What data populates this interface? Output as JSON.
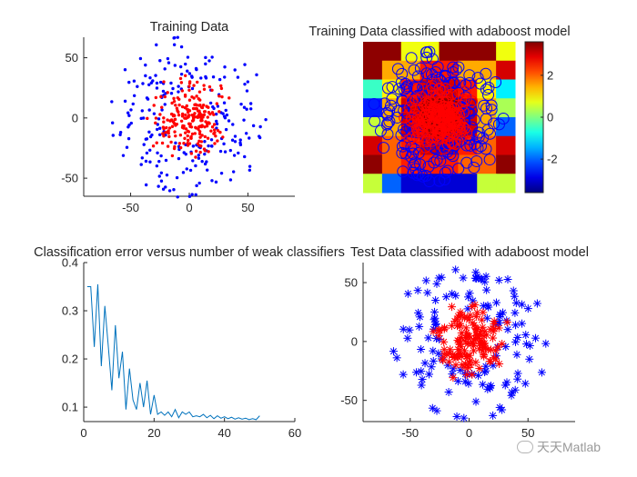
{
  "chart_data": [
    {
      "type": "scatter",
      "title": "Training Data",
      "xlim": [
        -90,
        90
      ],
      "ylim": [
        -65,
        67
      ],
      "xticks": [
        -50,
        0,
        50
      ],
      "yticks": [
        -50,
        0,
        50
      ],
      "series": [
        {
          "color": "#0000ff",
          "marker": ".",
          "generator": "ring",
          "count": 220,
          "r_min": 22,
          "r_max": 68,
          "seed": 11
        },
        {
          "color": "#ff0000",
          "marker": ".",
          "generator": "disk",
          "count": 220,
          "r_max": 40,
          "seed": 29
        }
      ]
    },
    {
      "type": "heatmap",
      "title": "Training Data classified with adaboost model",
      "colormap": "jet",
      "colorbar": {
        "ticks": [
          2,
          0,
          -2
        ],
        "labels": [
          "2",
          "0",
          "-2"
        ],
        "range": [
          -3.6,
          3.6
        ]
      },
      "grid_values": [
        [
          3.5,
          3.5,
          0.8,
          0.8,
          3.5,
          3.5,
          3.5,
          0.8
        ],
        [
          3.5,
          1.5,
          1.5,
          2.5,
          2.5,
          1.5,
          1.5,
          3.0
        ],
        [
          -0.5,
          1.0,
          2.5,
          3.0,
          3.0,
          2.5,
          1.0,
          -1.0
        ],
        [
          -2.5,
          1.5,
          3.0,
          3.5,
          3.5,
          3.0,
          1.5,
          0.3
        ],
        [
          0.5,
          1.5,
          3.0,
          3.5,
          3.5,
          3.0,
          1.5,
          -2.0
        ],
        [
          3.0,
          2.0,
          2.5,
          3.0,
          3.0,
          2.5,
          2.0,
          3.0
        ],
        [
          3.5,
          2.0,
          2.5,
          2.5,
          2.5,
          2.0,
          2.0,
          3.5
        ],
        [
          0.5,
          -2.0,
          -3.0,
          -3.0,
          -3.0,
          -3.0,
          0.5,
          0.5
        ]
      ],
      "overlay": [
        {
          "color": "#0000ff",
          "marker": "o",
          "generator": "ring",
          "count": 180,
          "r_min": 24,
          "r_max": 66,
          "seed": 11
        },
        {
          "color": "#ff0000",
          "marker": "o",
          "generator": "disk",
          "count": 180,
          "r_max": 38,
          "seed": 29
        }
      ],
      "xlim": [
        -75,
        75
      ],
      "ylim": [
        -75,
        75
      ]
    },
    {
      "type": "line",
      "title": "Classification error versus number of weak classifiers",
      "xlim": [
        0,
        60
      ],
      "ylim": [
        0.07,
        0.4
      ],
      "xticks": [
        0,
        20,
        40,
        60
      ],
      "yticks": [
        0.1,
        0.2,
        0.3,
        0.4
      ],
      "color": "#0072bd",
      "x": [
        1,
        2,
        3,
        4,
        5,
        6,
        7,
        8,
        9,
        10,
        11,
        12,
        13,
        14,
        15,
        16,
        17,
        18,
        19,
        20,
        21,
        22,
        23,
        24,
        25,
        26,
        27,
        28,
        29,
        30,
        31,
        32,
        33,
        34,
        35,
        36,
        37,
        38,
        39,
        40,
        41,
        42,
        43,
        44,
        45,
        46,
        47,
        48,
        49,
        50
      ],
      "values": [
        0.35,
        0.35,
        0.225,
        0.355,
        0.185,
        0.31,
        0.225,
        0.135,
        0.27,
        0.16,
        0.215,
        0.095,
        0.18,
        0.115,
        0.095,
        0.15,
        0.1,
        0.155,
        0.085,
        0.125,
        0.085,
        0.09,
        0.083,
        0.09,
        0.08,
        0.095,
        0.078,
        0.09,
        0.085,
        0.09,
        0.08,
        0.082,
        0.08,
        0.085,
        0.078,
        0.083,
        0.076,
        0.082,
        0.077,
        0.08,
        0.076,
        0.079,
        0.075,
        0.078,
        0.075,
        0.077,
        0.074,
        0.076,
        0.074,
        0.082
      ]
    },
    {
      "type": "scatter",
      "title": "Test Data classified with adaboost model",
      "xlim": [
        -90,
        90
      ],
      "ylim": [
        -68,
        67
      ],
      "xticks": [
        -50,
        0,
        50
      ],
      "yticks": [
        -50,
        0,
        50
      ],
      "series": [
        {
          "color": "#0000ff",
          "marker": "*",
          "generator": "ring",
          "count": 130,
          "r_min": 24,
          "r_max": 68,
          "seed": 53
        },
        {
          "color": "#ff0000",
          "marker": "*",
          "generator": "disk",
          "count": 130,
          "r_max": 38,
          "seed": 71
        }
      ]
    }
  ],
  "watermark": "天天Matlab"
}
